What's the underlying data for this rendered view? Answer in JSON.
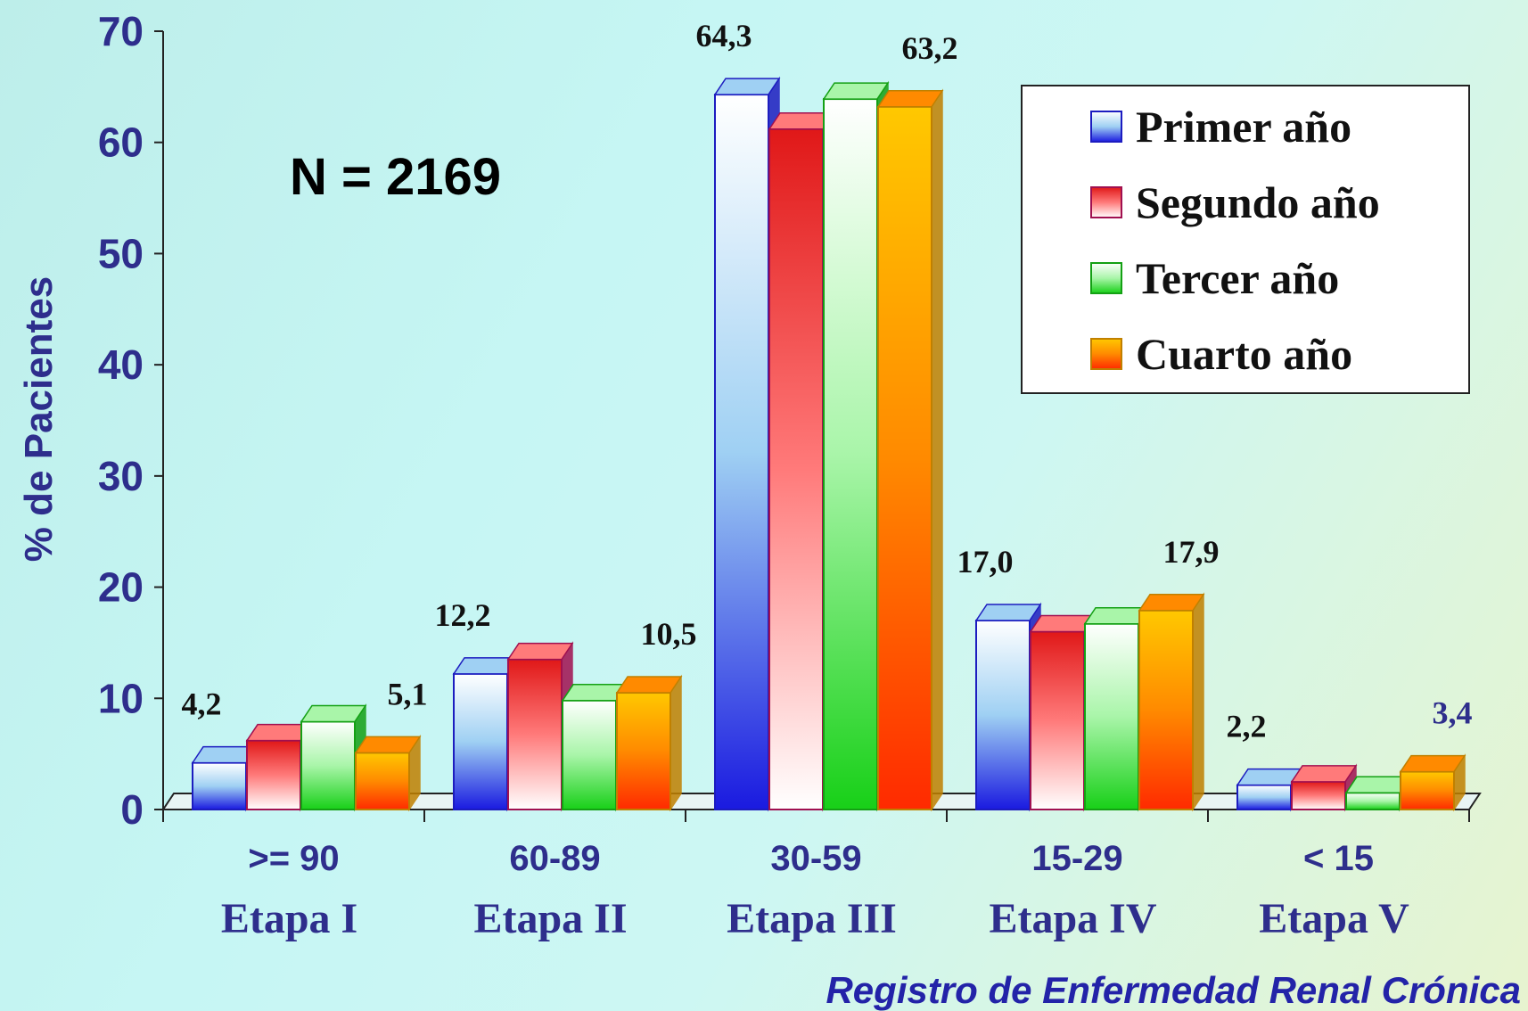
{
  "chart_data": {
    "type": "bar",
    "ylabel": "% de Pacientes",
    "ylim": [
      0,
      70
    ],
    "yticks": [
      0,
      10,
      20,
      30,
      40,
      50,
      60,
      70
    ],
    "categories": [
      ">= 90",
      "60-89",
      "30-59",
      "15-29",
      "< 15"
    ],
    "subcategories": [
      "Etapa I",
      "Etapa II",
      "Etapa III",
      "Etapa IV",
      "Etapa V"
    ],
    "series": [
      {
        "name": "Primer año",
        "values": [
          4.2,
          12.2,
          64.3,
          17.0,
          2.2
        ]
      },
      {
        "name": "Segundo año",
        "values": [
          6.2,
          13.5,
          61.2,
          16.0,
          2.5
        ]
      },
      {
        "name": "Tercer año",
        "values": [
          7.9,
          9.8,
          63.9,
          16.7,
          1.5
        ]
      },
      {
        "name": "Cuarto año",
        "values": [
          5.1,
          10.5,
          63.2,
          17.9,
          3.4
        ]
      }
    ],
    "data_labels": [
      {
        "category": 0,
        "series": 0,
        "text": "4,2"
      },
      {
        "category": 0,
        "series": 3,
        "text": "5,1"
      },
      {
        "category": 1,
        "series": 0,
        "text": "12,2"
      },
      {
        "category": 1,
        "series": 3,
        "text": "10,5"
      },
      {
        "category": 2,
        "series": 0,
        "text": "64,3"
      },
      {
        "category": 2,
        "series": 3,
        "text": "63,2"
      },
      {
        "category": 3,
        "series": 0,
        "text": "17,0"
      },
      {
        "category": 3,
        "series": 3,
        "text": "17,9"
      },
      {
        "category": 4,
        "series": 0,
        "text": "2,2"
      },
      {
        "category": 4,
        "series": 3,
        "text": "3,4"
      }
    ],
    "annotation": "N = 2169",
    "legend_position": "top-right",
    "grid": false
  },
  "colors": {
    "series": [
      {
        "top": "#ffffff",
        "mid": "#9fd0f3",
        "bottom": "#1a1ae0",
        "edge": "#1c1cc0"
      },
      {
        "top": "#e01818",
        "mid": "#ff7a7a",
        "bottom": "#ffffff",
        "edge": "#a01050"
      },
      {
        "top": "#ffffff",
        "mid": "#a9f5a9",
        "bottom": "#18d018",
        "edge": "#14a014"
      },
      {
        "top": "#ffc800",
        "mid": "#ff8a00",
        "bottom": "#ff2a00",
        "edge": "#c08000"
      }
    ],
    "axis_text": "#2e2e8c"
  },
  "footer": "Registro de Enfermedad Renal Crónica"
}
